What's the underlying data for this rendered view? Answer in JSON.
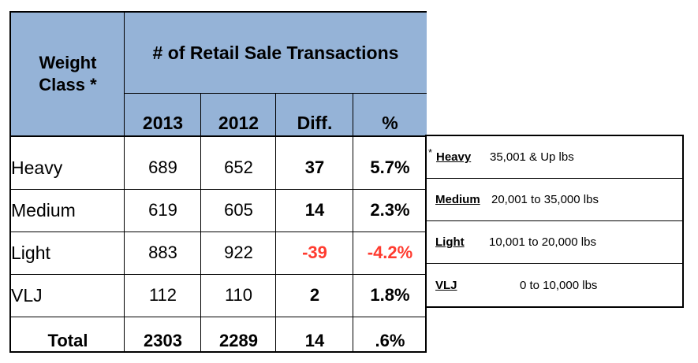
{
  "table": {
    "weight_class_header": "Weight Class *",
    "title": "# of Retail Sale Transactions",
    "columns": [
      "2013",
      "2012",
      "Diff.",
      "%"
    ],
    "rows": [
      {
        "label": "Heavy",
        "y2013": "689",
        "y2012": "652",
        "diff": "37",
        "pct": "5.7%",
        "negative": false
      },
      {
        "label": "Medium",
        "y2013": "619",
        "y2012": "605",
        "diff": "14",
        "pct": "2.3%",
        "negative": false
      },
      {
        "label": "Light",
        "y2013": "883",
        "y2012": "922",
        "diff": "-39",
        "pct": "-4.2%",
        "negative": true
      },
      {
        "label": "VLJ",
        "y2013": "112",
        "y2012": "110",
        "diff": "2",
        "pct": "1.8%",
        "negative": false
      }
    ],
    "total": {
      "label": "Total",
      "y2013": "2303",
      "y2012": "2289",
      "diff": "14",
      "pct": ".6%"
    }
  },
  "legend": [
    {
      "prefix": "* ",
      "key": "Heavy",
      "range": "35,001 & Up lbs"
    },
    {
      "prefix": "",
      "key": "Medium",
      "range": "20,001 to 35,000 lbs"
    },
    {
      "prefix": "",
      "key": "Light",
      "range": "10,001 to 20,000 lbs"
    },
    {
      "prefix": "",
      "key": "VLJ",
      "range": "0 to 10,000 lbs"
    }
  ],
  "colors": {
    "header_fill": "#95b3d7",
    "negative": "#ff3b2f"
  }
}
